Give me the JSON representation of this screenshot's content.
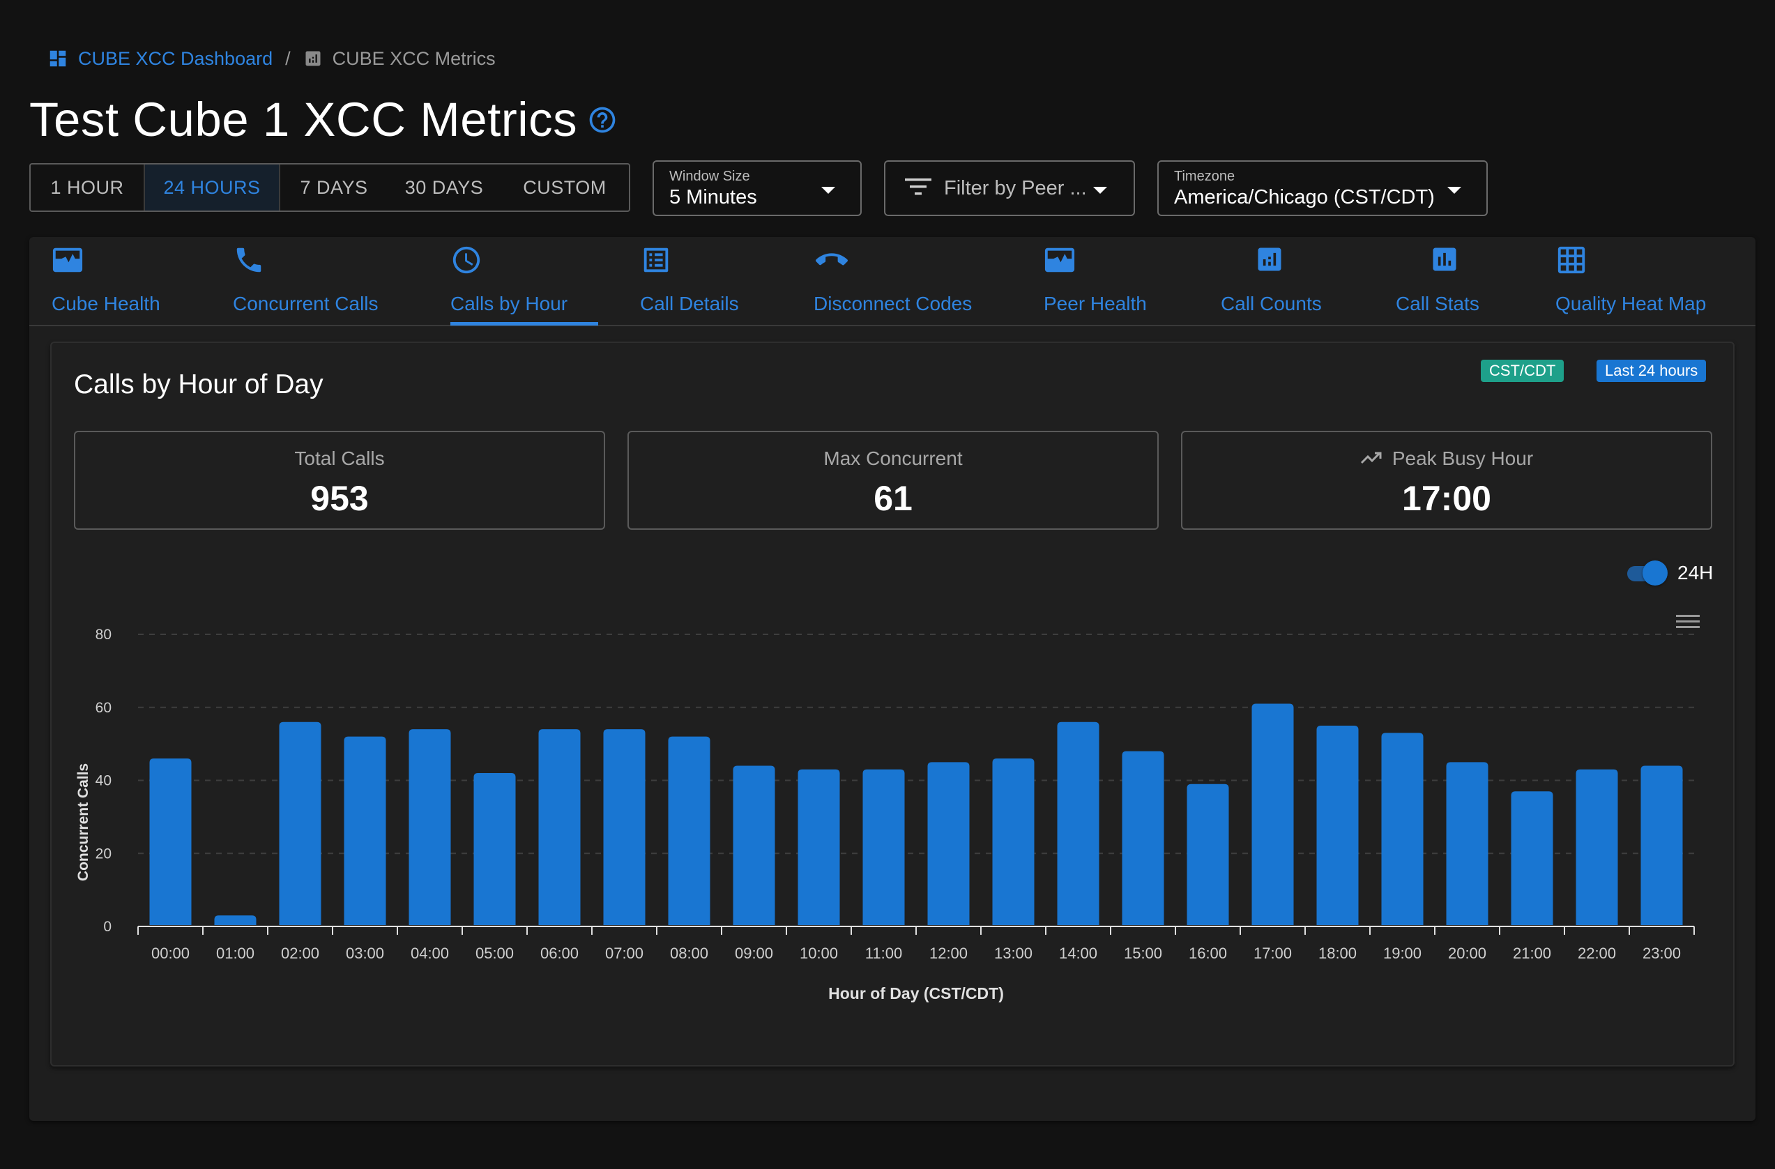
{
  "breadcrumb": {
    "dashboard_label": "CUBE XCC Dashboard",
    "separator": "/",
    "current_label": "CUBE XCC Metrics"
  },
  "page": {
    "title": "Test Cube 1 XCC Metrics"
  },
  "time_range": {
    "options": [
      "1 HOUR",
      "24 HOURS",
      "7 DAYS",
      "30 DAYS",
      "CUSTOM"
    ],
    "selected": "24 HOURS"
  },
  "window_size": {
    "label": "Window Size",
    "value": "5 Minutes"
  },
  "peer_filter": {
    "placeholder": "Filter by Peer ..."
  },
  "timezone": {
    "label": "Timezone",
    "value": "America/Chicago (CST/CDT)"
  },
  "tabs": [
    {
      "label": "Cube Health",
      "icon": "pulse-monitor-icon"
    },
    {
      "label": "Concurrent Calls",
      "icon": "phone-icon"
    },
    {
      "label": "Calls by Hour",
      "icon": "clock-icon",
      "active": true
    },
    {
      "label": "Call Details",
      "icon": "list-document-icon"
    },
    {
      "label": "Disconnect Codes",
      "icon": "call-end-icon"
    },
    {
      "label": "Peer Health",
      "icon": "pulse-monitor-icon"
    },
    {
      "label": "Call Counts",
      "icon": "bar-chart-box-icon"
    },
    {
      "label": "Call Stats",
      "icon": "bar-chart-box-icon"
    },
    {
      "label": "Quality Heat Map",
      "icon": "grid-icon"
    }
  ],
  "card": {
    "title": "Calls by Hour of Day",
    "timezone_chip": "CST/CDT",
    "range_chip": "Last 24 hours",
    "stats": {
      "total_calls": {
        "label": "Total Calls",
        "value": "953"
      },
      "max_concurrent": {
        "label": "Max Concurrent",
        "value": "61"
      },
      "peak_busy_hour": {
        "label": "Peak Busy Hour",
        "value": "17:00"
      }
    },
    "toggle": {
      "label": "24H",
      "on": true
    }
  },
  "colors": {
    "accent": "#2f84e0",
    "bar": "#1976d2",
    "chip_green": "#1ea08a",
    "background": "#121212",
    "panel": "#1e1e1e"
  },
  "chart_data": {
    "type": "bar",
    "categories": [
      "00:00",
      "01:00",
      "02:00",
      "03:00",
      "04:00",
      "05:00",
      "06:00",
      "07:00",
      "08:00",
      "09:00",
      "10:00",
      "11:00",
      "12:00",
      "13:00",
      "14:00",
      "15:00",
      "16:00",
      "17:00",
      "18:00",
      "19:00",
      "20:00",
      "21:00",
      "22:00",
      "23:00"
    ],
    "values": [
      46,
      3,
      56,
      52,
      54,
      42,
      54,
      54,
      52,
      44,
      43,
      43,
      45,
      46,
      56,
      48,
      39,
      61,
      55,
      53,
      45,
      37,
      43,
      44
    ],
    "xlabel": "Hour of Day (CST/CDT)",
    "ylabel": "Concurrent Calls",
    "ylim": [
      0,
      80
    ],
    "yticks": [
      0,
      20,
      40,
      60,
      80
    ],
    "grid": true,
    "legend": "none"
  }
}
